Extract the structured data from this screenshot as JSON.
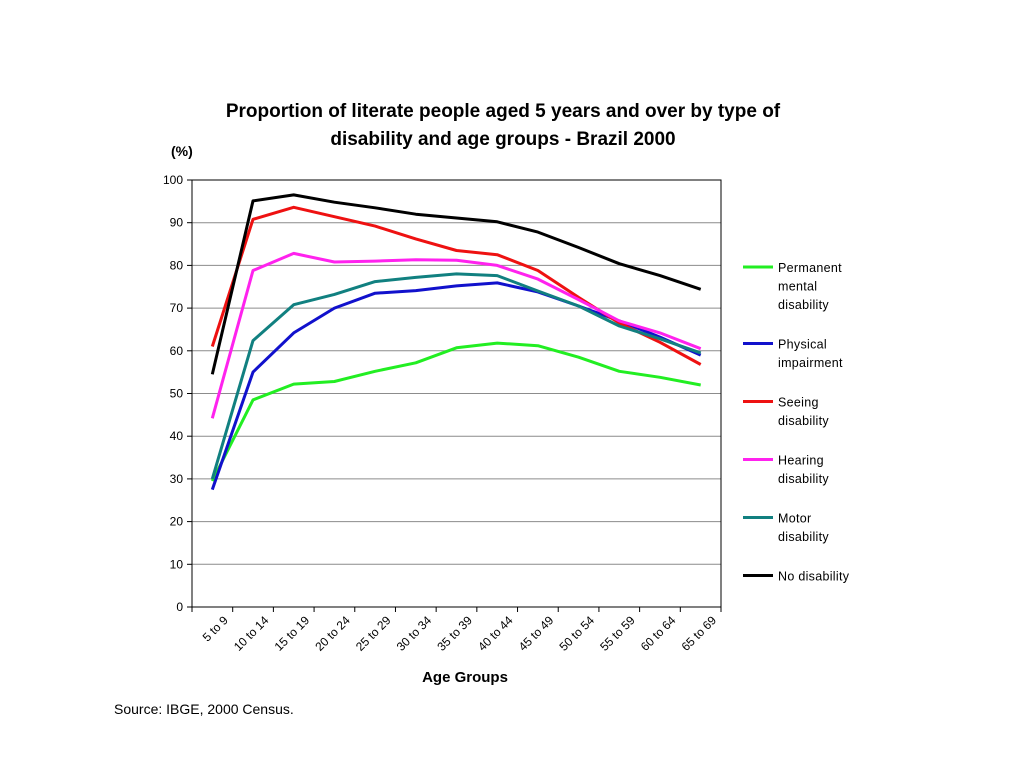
{
  "chart_data": {
    "type": "line",
    "title_lines": [
      "Proportion of literate people aged 5 years and over by type of",
      "disability and age groups -  Brazil  2000"
    ],
    "unit_label": "(%)",
    "xlabel": "Age Groups",
    "ylabel": "",
    "ylim": [
      0,
      100
    ],
    "yticks": [
      0,
      10,
      20,
      30,
      40,
      50,
      60,
      70,
      80,
      90,
      100
    ],
    "grid": true,
    "legend_position": "right",
    "categories": [
      "5 to 9",
      "10 to 14",
      "15 to 19",
      "20 to 24",
      "25 to 29",
      "30 to 34",
      "35 to 39",
      "40 to 44",
      "45 to 49",
      "50 to 54",
      "55 to 59",
      "60 to 64",
      "65 to 69"
    ],
    "series": [
      {
        "name": "Permanent mental disability",
        "legend_lines": [
          "Permanent",
          "mental",
          "disability"
        ],
        "color": "#22ee22",
        "values": [
          29.5,
          48.5,
          52.2,
          52.8,
          55.2,
          57.2,
          60.7,
          61.8,
          61.2,
          58.5,
          55.2,
          53.8,
          52.0
        ]
      },
      {
        "name": "Physical impairment",
        "legend_lines": [
          "Physical",
          "impairment"
        ],
        "color": "#1111cc",
        "values": [
          27.5,
          55.0,
          64.2,
          70.0,
          73.5,
          74.1,
          75.2,
          75.9,
          73.8,
          70.5,
          67.0,
          63.2,
          59.0
        ]
      },
      {
        "name": "Seeing disability",
        "legend_lines": [
          "Seeing",
          "disability"
        ],
        "color": "#ee1111",
        "values": [
          61.0,
          90.8,
          93.6,
          91.4,
          89.2,
          86.2,
          83.5,
          82.5,
          78.8,
          72.5,
          66.5,
          62.0,
          56.8
        ]
      },
      {
        "name": "Hearing disability",
        "legend_lines": [
          "Hearing",
          "disability"
        ],
        "color": "#ff22ee",
        "values": [
          44.2,
          78.8,
          82.8,
          80.8,
          81.0,
          81.3,
          81.2,
          80.0,
          76.8,
          72.0,
          67.0,
          64.2,
          60.5
        ]
      },
      {
        "name": "Motor disability",
        "legend_lines": [
          "Motor",
          "disability"
        ],
        "color": "#118080",
        "values": [
          30.0,
          62.4,
          70.8,
          73.2,
          76.2,
          77.2,
          78.0,
          77.6,
          74.0,
          70.5,
          65.8,
          62.8,
          59.5
        ]
      },
      {
        "name": "No disability",
        "legend_lines": [
          "No disability"
        ],
        "color": "#000000",
        "values": [
          54.5,
          95.1,
          96.5,
          94.8,
          93.5,
          92.0,
          91.1,
          90.2,
          87.8,
          84.2,
          80.4,
          77.6,
          74.4
        ]
      }
    ],
    "source": "Source: IBGE, 2000 Census."
  }
}
